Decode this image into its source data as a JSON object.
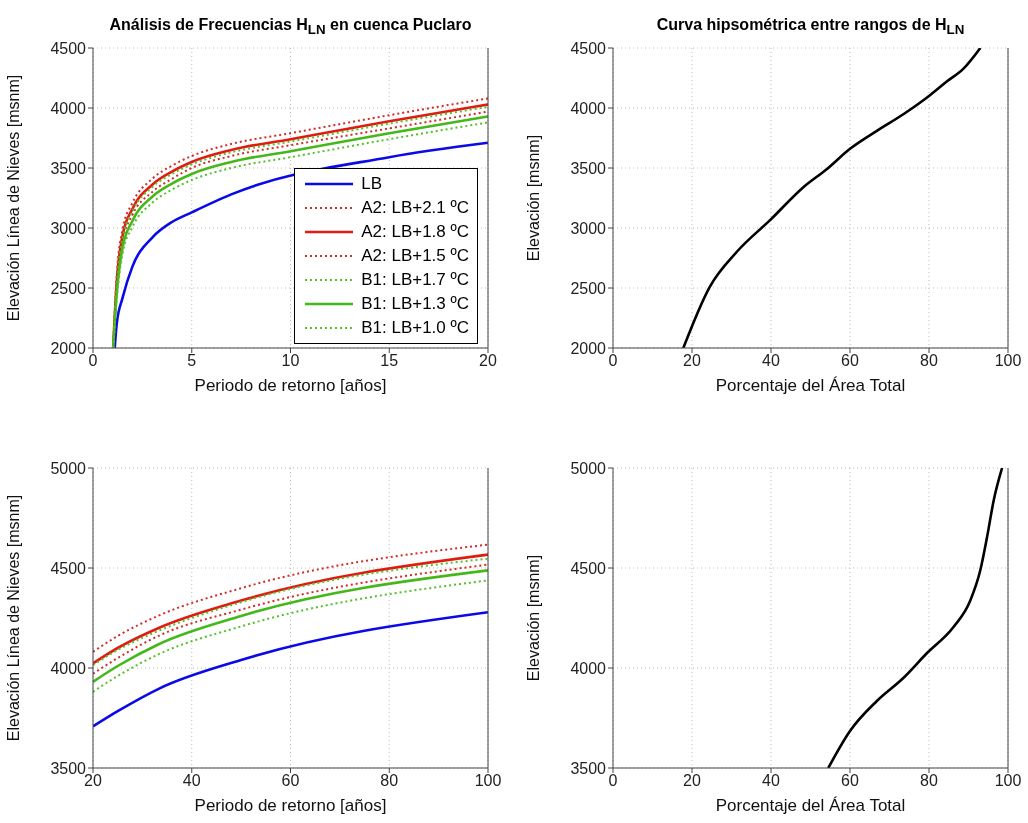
{
  "chart_data": [
    {
      "type": "line",
      "title": "Análisis de Frecuencias H$_{LN}$ en cuenca Puclaro",
      "xlabel": "Periodo de retorno [años]",
      "ylabel": "Elevación Línea de Nieves [msnm]",
      "xlim": [
        0,
        20
      ],
      "xticks": [
        0,
        5,
        10,
        15,
        20
      ],
      "ylim": [
        2000,
        4500
      ],
      "yticks": [
        2000,
        2500,
        3000,
        3500,
        4000,
        4500
      ],
      "grid": true,
      "legend": "right",
      "x": [
        1.02,
        1.2,
        1.5,
        2,
        3,
        4,
        5,
        7,
        10,
        15,
        20
      ],
      "series": [
        {
          "name": "LB",
          "color": "#0a0ae6",
          "line_style": "solid",
          "x": [
            1.1,
            1.2,
            1.5,
            2,
            3,
            4,
            5,
            7,
            15,
            20
          ],
          "values": [
            2000,
            2200,
            2420,
            2680,
            2920,
            3050,
            3130,
            3280,
            3590,
            3710
          ]
        },
        {
          "name": "A2: LB+2.1 ºC",
          "color": "#d42a2a",
          "line_style": "dotted",
          "values": [
            2000,
            2600,
            2990,
            3210,
            3410,
            3520,
            3600,
            3700,
            3790,
            3940,
            4080
          ]
        },
        {
          "name": "A2: LB+1.8 ºC",
          "color": "#e01b12",
          "line_style": "solid",
          "values": [
            2000,
            2550,
            2940,
            3160,
            3360,
            3470,
            3550,
            3650,
            3740,
            3890,
            4030
          ]
        },
        {
          "name": "A2: LB+1.5 ºC",
          "color": "#d42a2a",
          "line_style": "dotted",
          "values": [
            2000,
            2490,
            2890,
            3110,
            3300,
            3410,
            3500,
            3600,
            3690,
            3830,
            3970
          ]
        },
        {
          "name": "B1: LB+1.7 ºC",
          "color": "#55c02a",
          "line_style": "dotted",
          "values": [
            2000,
            2530,
            2920,
            3140,
            3340,
            3450,
            3530,
            3630,
            3720,
            3870,
            4010
          ]
        },
        {
          "name": "B1: LB+1.3 ºC",
          "color": "#44b81a",
          "line_style": "solid",
          "values": [
            2000,
            2450,
            2840,
            3060,
            3260,
            3370,
            3450,
            3550,
            3640,
            3790,
            3930
          ]
        },
        {
          "name": "B1: LB+1.0 ºC",
          "color": "#55c02a",
          "line_style": "dotted",
          "values": [
            2000,
            2400,
            2790,
            3010,
            3210,
            3320,
            3400,
            3500,
            3590,
            3740,
            3880
          ]
        }
      ]
    },
    {
      "type": "line",
      "title": "Curva hipsométrica entre rangos de H$_{LN}$",
      "xlabel": "Porcentaje del Área Total",
      "ylabel": "Elevación [msnm]",
      "xlim": [
        0,
        100
      ],
      "xticks": [
        0,
        20,
        40,
        60,
        80,
        100
      ],
      "ylim": [
        2000,
        4500
      ],
      "yticks": [
        2000,
        2500,
        3000,
        3500,
        4000,
        4500
      ],
      "grid": true,
      "x": [
        17.8,
        24.5,
        31.3,
        39.9,
        48.2,
        54.1,
        60,
        66.8,
        73.6,
        80,
        84.5,
        88.8,
        93
      ],
      "series": [
        {
          "color": "#000000",
          "line_style": "solid",
          "values": [
            2000,
            2510,
            2800,
            3070,
            3340,
            3490,
            3660,
            3810,
            3950,
            4100,
            4220,
            4330,
            4500
          ]
        }
      ]
    },
    {
      "type": "line",
      "xlabel": "Periodo de retorno [años]",
      "ylabel": "Elevación Línea de Nieves [msnm]",
      "xlim": [
        20,
        100
      ],
      "xticks": [
        20,
        40,
        60,
        80,
        100
      ],
      "ylim": [
        3500,
        5000
      ],
      "yticks": [
        3500,
        4000,
        4500,
        5000
      ],
      "grid": true,
      "x": [
        20,
        25,
        33.3,
        50,
        100
      ],
      "series": [
        {
          "color": "#0a0ae6",
          "line_style": "solid",
          "values": [
            3708,
            3784,
            3896,
            4040,
            4279
          ]
        },
        {
          "color": "#d42a2a",
          "line_style": "dotted",
          "values": [
            4081,
            4160,
            4262,
            4399,
            4617
          ]
        },
        {
          "color": "#e01b12",
          "line_style": "solid",
          "values": [
            4023,
            4100,
            4200,
            4337,
            4567
          ]
        },
        {
          "color": "#d42a2a",
          "line_style": "dotted",
          "values": [
            3971,
            4050,
            4161,
            4292,
            4517
          ]
        },
        {
          "color": "#55c02a",
          "line_style": "dotted",
          "values": [
            4015,
            4090,
            4186,
            4329,
            4547
          ]
        },
        {
          "color": "#44b81a",
          "line_style": "solid",
          "values": [
            3931,
            4010,
            4119,
            4260,
            4488
          ]
        },
        {
          "color": "#55c02a",
          "line_style": "dotted",
          "values": [
            3881,
            3960,
            4069,
            4208,
            4438
          ]
        }
      ]
    },
    {
      "type": "line",
      "xlabel": "Porcentaje del Área Total",
      "ylabel": "Elevación [msnm]",
      "xlim": [
        0,
        100
      ],
      "xticks": [
        0,
        20,
        40,
        60,
        80,
        100
      ],
      "ylim": [
        3500,
        5000
      ],
      "yticks": [
        3500,
        4000,
        4500,
        5000
      ],
      "grid": true,
      "x": [
        54.5,
        60,
        66.8,
        73.5,
        79.5,
        86.2,
        90.4,
        93,
        94.7,
        96.4,
        98.5
      ],
      "series": [
        {
          "color": "#000000",
          "line_style": "solid",
          "values": [
            3500,
            3685,
            3835,
            3950,
            4075,
            4205,
            4335,
            4490,
            4655,
            4840,
            5000
          ]
        }
      ]
    }
  ]
}
